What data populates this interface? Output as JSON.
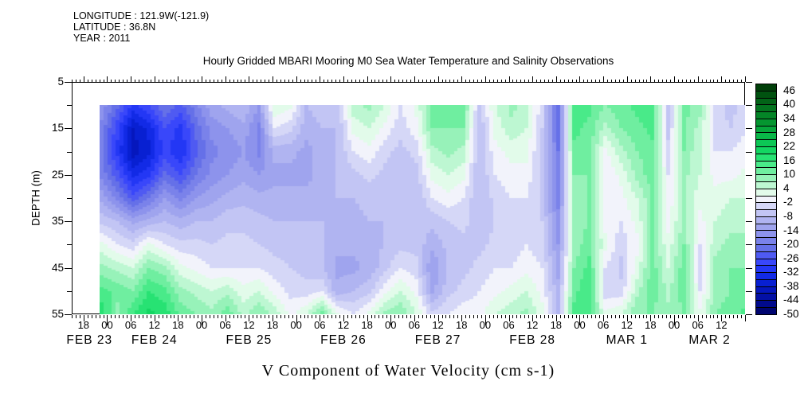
{
  "header": {
    "line1": "LONGITUDE : 121.9W(-121.9)",
    "line2": "LATITUDE : 36.8N",
    "line3": "YEAR : 2011"
  },
  "title": "Hourly Gridded MBARI Mooring M0 Sea Water Temperature and Salinity Observations",
  "caption": "V Component of Water Velocity (cm s-1)",
  "chart_data": {
    "type": "heatmap",
    "title": "Hourly Gridded MBARI Mooring M0 Sea Water Temperature and Salinity Observations",
    "ylabel": "DEPTH (m)",
    "units": "cm s-1",
    "ylim": [
      5,
      55
    ],
    "y_major_ticks": [
      5,
      15,
      25,
      35,
      45,
      55
    ],
    "y_tick_labels": [
      "5",
      "15",
      "25",
      "35",
      "45",
      "55"
    ],
    "y_minor_step": 5,
    "x_unit": "hours since 2011-02-23 18:00",
    "x_start_hour": -3,
    "x_end_hour": 168,
    "data_start_hour": 4,
    "hour_label_step": 6,
    "hour_labels": [
      "18",
      "00",
      "06",
      "12",
      "18",
      "00",
      "06",
      "12",
      "18",
      "00",
      "06",
      "12",
      "18",
      "00",
      "06",
      "12",
      "18",
      "00",
      "06",
      "12",
      "18",
      "00",
      "06",
      "12",
      "18",
      "00",
      "06",
      "12"
    ],
    "date_labels": [
      {
        "label": "FEB 23",
        "center_hour": 1.5
      },
      {
        "label": "FEB 24",
        "center_hour": 18
      },
      {
        "label": "FEB 25",
        "center_hour": 42
      },
      {
        "label": "FEB 26",
        "center_hour": 66
      },
      {
        "label": "FEB 27",
        "center_hour": 90
      },
      {
        "label": "FEB 28",
        "center_hour": 114
      },
      {
        "label": "MAR 1",
        "center_hour": 138
      },
      {
        "label": "MAR 2",
        "center_hour": 159
      }
    ],
    "colorbar": {
      "min": -50,
      "max": 49,
      "step": 3,
      "tick_step": 6,
      "tick_labels": [
        "46",
        "40",
        "34",
        "28",
        "22",
        "16",
        "10",
        "4",
        "-2",
        "-8",
        "-14",
        "-20",
        "-26",
        "-32",
        "-38",
        "-44",
        "-50"
      ],
      "palette_low_to_high": [
        "#000570",
        "#010a8c",
        "#0310a5",
        "#0517bd",
        "#0820d2",
        "#122ae6",
        "#2337f5",
        "#3947fa",
        "#4f5af2",
        "#6570e8",
        "#7a82ea",
        "#8d93ec",
        "#9fa4ee",
        "#b0b4f1",
        "#c2c5f4",
        "#d5d7f7",
        "#f2f3fb",
        "#e2fbea",
        "#bdf7d2",
        "#97f2b9",
        "#6feea0",
        "#49ea89",
        "#27e273",
        "#13d662",
        "#0cc755",
        "#09b748",
        "#07a73c",
        "#059630",
        "#048527",
        "#03741f",
        "#026317",
        "#015210",
        "#01400a"
      ]
    },
    "grid": {
      "t_hours": [
        4,
        8,
        12,
        16,
        20,
        24,
        28,
        32,
        36,
        40,
        44,
        48,
        52,
        56,
        60,
        64,
        68,
        72,
        76,
        80,
        84,
        88,
        92,
        96,
        100,
        104,
        108,
        112,
        116,
        120,
        124,
        128,
        132,
        136,
        140,
        144,
        148,
        152,
        156,
        160,
        164,
        168
      ],
      "depths_m": [
        10,
        15,
        20,
        25,
        30,
        35,
        40,
        45,
        50,
        55
      ],
      "values": [
        [
          -15,
          -22,
          -30,
          -26,
          -20,
          -24,
          -18,
          -12,
          -10,
          -8,
          -14,
          4,
          2,
          -8,
          -6,
          -6,
          6,
          8,
          4,
          -2,
          2,
          12,
          12,
          12,
          -6,
          4,
          8,
          6,
          -4,
          -22,
          16,
          14,
          10,
          12,
          14,
          16,
          -8,
          12,
          8,
          -4,
          -6,
          -4
        ],
        [
          -18,
          -28,
          -38,
          -34,
          -26,
          -30,
          -22,
          -16,
          -14,
          -12,
          -18,
          -2,
          -4,
          -10,
          -8,
          -8,
          2,
          4,
          0,
          -4,
          0,
          10,
          10,
          10,
          -8,
          2,
          6,
          4,
          -5,
          -22,
          14,
          12,
          6,
          10,
          12,
          14,
          -6,
          10,
          6,
          -4,
          -5,
          -2
        ],
        [
          -20,
          -30,
          -40,
          -36,
          -28,
          -32,
          -24,
          -18,
          -16,
          -14,
          -18,
          -10,
          -10,
          -12,
          -10,
          -8,
          -2,
          0,
          -4,
          -6,
          -4,
          6,
          8,
          6,
          -8,
          0,
          2,
          2,
          -6,
          -20,
          12,
          12,
          0,
          6,
          10,
          12,
          -4,
          10,
          4,
          -2,
          -2,
          0
        ],
        [
          -18,
          -25,
          -33,
          -30,
          -22,
          -26,
          -20,
          -16,
          -14,
          -12,
          -14,
          -12,
          -12,
          -12,
          -10,
          -8,
          -6,
          -4,
          -6,
          -8,
          -6,
          2,
          4,
          2,
          -8,
          -2,
          0,
          0,
          -6,
          -20,
          10,
          10,
          -2,
          2,
          8,
          12,
          -2,
          8,
          4,
          0,
          0,
          2
        ],
        [
          -12,
          -18,
          -25,
          -20,
          -14,
          -18,
          -14,
          -12,
          -10,
          -9,
          -10,
          -10,
          -10,
          -10,
          -9,
          -8,
          -8,
          -7,
          -8,
          -8,
          -8,
          -2,
          0,
          -2,
          -8,
          -4,
          -2,
          -2,
          -6,
          -18,
          8,
          10,
          -2,
          0,
          4,
          10,
          -2,
          8,
          2,
          2,
          4,
          4
        ],
        [
          -6,
          -8,
          -12,
          -10,
          -8,
          -10,
          -8,
          -8,
          -6,
          -6,
          -7,
          -8,
          -8,
          -8,
          -8,
          -9,
          -9,
          -8,
          -8,
          -8,
          -7,
          -7,
          -5,
          -4,
          -7,
          -5,
          -4,
          -3,
          -5,
          -16,
          8,
          10,
          0,
          -2,
          2,
          10,
          0,
          8,
          0,
          4,
          6,
          6
        ],
        [
          2,
          -2,
          -4,
          2,
          -2,
          -4,
          -4,
          -5,
          -4,
          -4,
          -5,
          -6,
          -6,
          -7,
          -8,
          -10,
          -10,
          -9,
          -8,
          -6,
          -6,
          -10,
          -7,
          -6,
          -6,
          -4,
          -4,
          -2,
          -4,
          -14,
          8,
          12,
          2,
          -4,
          0,
          10,
          2,
          10,
          -2,
          6,
          8,
          8
        ],
        [
          8,
          6,
          4,
          10,
          8,
          2,
          0,
          -2,
          -2,
          -2,
          -2,
          -4,
          -5,
          -6,
          -8,
          -12,
          -12,
          -10,
          -6,
          -2,
          -4,
          -14,
          -8,
          -6,
          -4,
          -2,
          -2,
          0,
          -2,
          -12,
          10,
          14,
          -2,
          -6,
          2,
          12,
          4,
          12,
          -4,
          8,
          10,
          10
        ],
        [
          14,
          12,
          10,
          16,
          14,
          8,
          6,
          4,
          6,
          2,
          4,
          0,
          -3,
          -4,
          -2,
          -10,
          -8,
          -6,
          0,
          4,
          0,
          -12,
          -6,
          -4,
          -2,
          0,
          2,
          4,
          0,
          -10,
          12,
          16,
          -4,
          -4,
          6,
          12,
          6,
          12,
          -2,
          8,
          10,
          12
        ],
        [
          18,
          8,
          16,
          20,
          18,
          12,
          10,
          8,
          12,
          6,
          10,
          6,
          0,
          4,
          12,
          2,
          -2,
          2,
          8,
          10,
          4,
          -4,
          -2,
          0,
          0,
          4,
          6,
          8,
          2,
          -8,
          14,
          14,
          2,
          4,
          10,
          10,
          8,
          10,
          2,
          10,
          12,
          14
        ]
      ]
    }
  }
}
